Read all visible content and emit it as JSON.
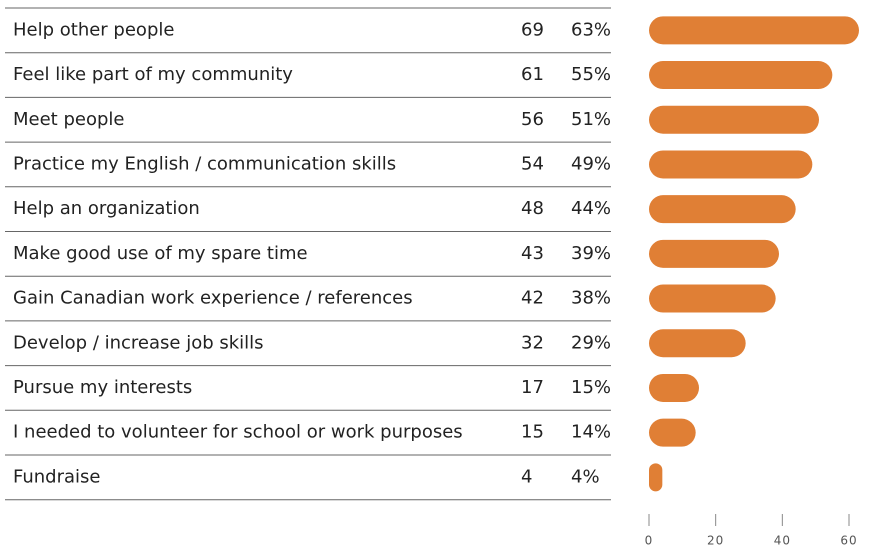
{
  "chart_data": {
    "type": "bar",
    "orientation": "horizontal",
    "categories": [
      "Help other people",
      "Feel like part of my community",
      "Meet people",
      "Practice my English / communication skills",
      "Help an organization",
      "Make good use of my spare time",
      "Gain Canadian work experience / references",
      "Develop / increase job skills",
      "Pursue my interests",
      "I needed to volunteer for school or work purposes",
      "Fundraise"
    ],
    "counts": [
      69,
      61,
      56,
      54,
      48,
      43,
      42,
      32,
      17,
      15,
      4
    ],
    "values": [
      63,
      55,
      51,
      49,
      44,
      39,
      38,
      29,
      15,
      14,
      4
    ],
    "value_labels": [
      "63%",
      "55%",
      "51%",
      "49%",
      "44%",
      "39%",
      "38%",
      "29%",
      "15%",
      "14%",
      "4%"
    ],
    "color": "#e07f35",
    "xlim": [
      0,
      60
    ],
    "xticks": [
      0,
      20,
      40,
      60
    ]
  }
}
